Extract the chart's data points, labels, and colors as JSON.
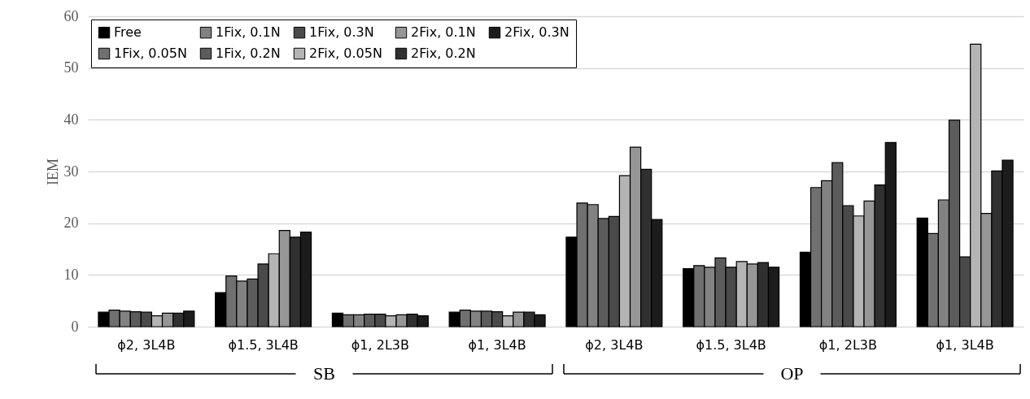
{
  "chart_data": {
    "type": "bar",
    "ylabel": "IEM",
    "categories": [
      "ϕ2, 3L4B",
      "ϕ1.5, 3L4B",
      "ϕ1, 2L3B",
      "ϕ1, 3L4B",
      "ϕ2, 3L4B",
      "ϕ1.5, 3L4B",
      "ϕ1, 2L3B",
      "ϕ1, 3L4B"
    ],
    "series": [
      {
        "name": "Free",
        "color": "#000000",
        "values": [
          2.8,
          6.6,
          2.6,
          2.8,
          17.3,
          11.2,
          14.4,
          21.0
        ]
      },
      {
        "name": "1Fix, 0.05N",
        "color": "#707070",
        "values": [
          3.2,
          9.8,
          2.3,
          3.2,
          23.9,
          11.8,
          26.9,
          18.0
        ]
      },
      {
        "name": "1Fix, 0.1N",
        "color": "#828282",
        "values": [
          3.0,
          8.8,
          2.3,
          3.0,
          23.6,
          11.5,
          28.2,
          24.5
        ]
      },
      {
        "name": "1Fix, 0.2N",
        "color": "#5c5c5c",
        "values": [
          2.9,
          9.2,
          2.4,
          3.0,
          20.9,
          13.3,
          31.7,
          39.9
        ]
      },
      {
        "name": "1Fix, 0.3N",
        "color": "#4a4a4a",
        "values": [
          2.8,
          12.1,
          2.4,
          2.9,
          21.3,
          11.5,
          23.4,
          13.5
        ]
      },
      {
        "name": "2Fix, 0.05N",
        "color": "#b4b4b4",
        "values": [
          2.1,
          14.1,
          2.1,
          2.1,
          29.2,
          12.6,
          21.4,
          54.6
        ]
      },
      {
        "name": "2Fix, 0.1N",
        "color": "#969696",
        "values": [
          2.6,
          18.6,
          2.3,
          2.8,
          34.7,
          12.1,
          24.3,
          21.9
        ]
      },
      {
        "name": "2Fix, 0.2N",
        "color": "#303030",
        "values": [
          2.6,
          17.3,
          2.4,
          2.8,
          30.4,
          12.4,
          27.4,
          30.1
        ]
      },
      {
        "name": "2Fix, 0.3N",
        "color": "#1c1c1c",
        "values": [
          3.0,
          18.3,
          2.1,
          2.3,
          20.7,
          11.5,
          35.6,
          32.2
        ]
      }
    ],
    "ylim": [
      0,
      60
    ],
    "yticks": [
      0,
      10,
      20,
      30,
      40,
      50,
      60
    ],
    "grid": "y",
    "legend": "top left",
    "annotations": [
      "SB",
      "OP"
    ]
  }
}
